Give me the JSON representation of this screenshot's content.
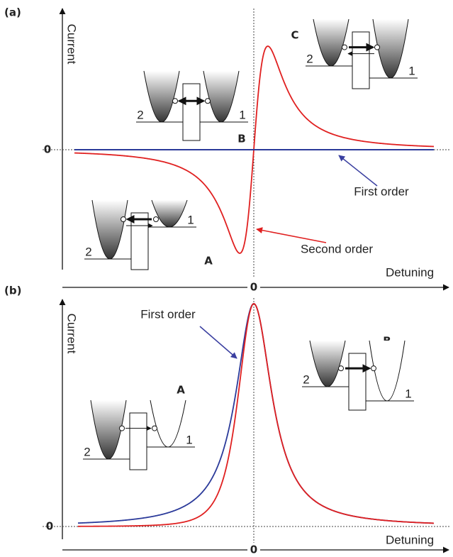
{
  "panel_a": {
    "label": "(a)",
    "y_label": "Current",
    "y_zero": "0",
    "x_zero": "0",
    "x_label": "Detuning",
    "first_order": "First order",
    "second_order": "Second order",
    "regions": [
      "A",
      "B",
      "C"
    ],
    "insets": [
      {
        "left": "2",
        "right": "1"
      },
      {
        "left": "2",
        "right": "1"
      },
      {
        "left": "2",
        "right": "1"
      }
    ]
  },
  "panel_b": {
    "label": "(b)",
    "y_label": "Current",
    "y_zero": "0",
    "x_zero": "0",
    "x_label": "Detuning",
    "first_order": "First order",
    "regions": [
      "A",
      "B"
    ],
    "insets": [
      {
        "left": "2",
        "right": "1"
      },
      {
        "left": "2",
        "right": "1"
      }
    ]
  }
}
